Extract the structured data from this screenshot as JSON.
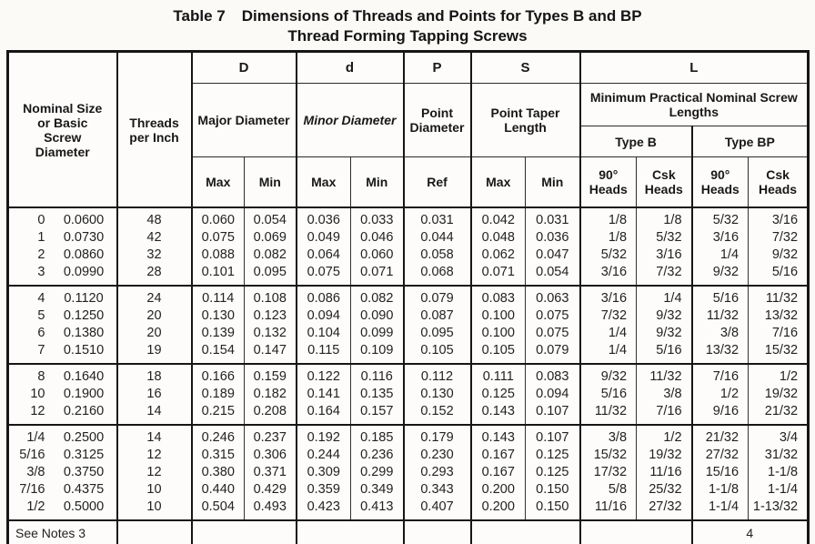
{
  "title": {
    "label": "Table 7",
    "line1": "Dimensions of Threads and Points for Types B and BP",
    "line2": "Thread Forming Tapping Screws"
  },
  "header": {
    "nominal_size": "Nominal Size or Basic Screw Diameter",
    "threads_per_inch": "Threads per Inch",
    "letter_major": "D",
    "letter_minor": "d",
    "letter_point": "P",
    "letter_taper": "S",
    "letter_length": "L",
    "major_diameter": "Major Diameter",
    "minor_diameter": "Minor Diameter",
    "point_diameter": "Point Diameter",
    "point_taper_length": "Point Taper Length",
    "min_practical": "Minimum Practical Nominal Screw Lengths",
    "type_b": "Type B",
    "type_bp": "Type BP",
    "max": "Max",
    "min": "Min",
    "ref": "Ref",
    "heads_90": "90° Heads",
    "heads_csk": "Csk Heads"
  },
  "groups": [
    {
      "rows": [
        {
          "size": "0",
          "basic": "0.0600",
          "tpi": "48",
          "major_max": "0.060",
          "major_min": "0.054",
          "minor_max": "0.036",
          "minor_min": "0.033",
          "point_ref": "0.031",
          "taper_max": "0.042",
          "taper_min": "0.031",
          "b_90": "1/8",
          "b_csk": "1/8",
          "bp_90": "5/32",
          "bp_csk": "3/16"
        },
        {
          "size": "1",
          "basic": "0.0730",
          "tpi": "42",
          "major_max": "0.075",
          "major_min": "0.069",
          "minor_max": "0.049",
          "minor_min": "0.046",
          "point_ref": "0.044",
          "taper_max": "0.048",
          "taper_min": "0.036",
          "b_90": "1/8",
          "b_csk": "5/32",
          "bp_90": "3/16",
          "bp_csk": "7/32"
        },
        {
          "size": "2",
          "basic": "0.0860",
          "tpi": "32",
          "major_max": "0.088",
          "major_min": "0.082",
          "minor_max": "0.064",
          "minor_min": "0.060",
          "point_ref": "0.058",
          "taper_max": "0.062",
          "taper_min": "0.047",
          "b_90": "5/32",
          "b_csk": "3/16",
          "bp_90": "1/4",
          "bp_csk": "9/32"
        },
        {
          "size": "3",
          "basic": "0.0990",
          "tpi": "28",
          "major_max": "0.101",
          "major_min": "0.095",
          "minor_max": "0.075",
          "minor_min": "0.071",
          "point_ref": "0.068",
          "taper_max": "0.071",
          "taper_min": "0.054",
          "b_90": "3/16",
          "b_csk": "7/32",
          "bp_90": "9/32",
          "bp_csk": "5/16"
        }
      ]
    },
    {
      "rows": [
        {
          "size": "4",
          "basic": "0.1120",
          "tpi": "24",
          "major_max": "0.114",
          "major_min": "0.108",
          "minor_max": "0.086",
          "minor_min": "0.082",
          "point_ref": "0.079",
          "taper_max": "0.083",
          "taper_min": "0.063",
          "b_90": "3/16",
          "b_csk": "1/4",
          "bp_90": "5/16",
          "bp_csk": "11/32"
        },
        {
          "size": "5",
          "basic": "0.1250",
          "tpi": "20",
          "major_max": "0.130",
          "major_min": "0.123",
          "minor_max": "0.094",
          "minor_min": "0.090",
          "point_ref": "0.087",
          "taper_max": "0.100",
          "taper_min": "0.075",
          "b_90": "7/32",
          "b_csk": "9/32",
          "bp_90": "11/32",
          "bp_csk": "13/32"
        },
        {
          "size": "6",
          "basic": "0.1380",
          "tpi": "20",
          "major_max": "0.139",
          "major_min": "0.132",
          "minor_max": "0.104",
          "minor_min": "0.099",
          "point_ref": "0.095",
          "taper_max": "0.100",
          "taper_min": "0.075",
          "b_90": "1/4",
          "b_csk": "9/32",
          "bp_90": "3/8",
          "bp_csk": "7/16"
        },
        {
          "size": "7",
          "basic": "0.1510",
          "tpi": "19",
          "major_max": "0.154",
          "major_min": "0.147",
          "minor_max": "0.115",
          "minor_min": "0.109",
          "point_ref": "0.105",
          "taper_max": "0.105",
          "taper_min": "0.079",
          "b_90": "1/4",
          "b_csk": "5/16",
          "bp_90": "13/32",
          "bp_csk": "15/32"
        }
      ]
    },
    {
      "rows": [
        {
          "size": "8",
          "basic": "0.1640",
          "tpi": "18",
          "major_max": "0.166",
          "major_min": "0.159",
          "minor_max": "0.122",
          "minor_min": "0.116",
          "point_ref": "0.112",
          "taper_max": "0.111",
          "taper_min": "0.083",
          "b_90": "9/32",
          "b_csk": "11/32",
          "bp_90": "7/16",
          "bp_csk": "1/2"
        },
        {
          "size": "10",
          "basic": "0.1900",
          "tpi": "16",
          "major_max": "0.189",
          "major_min": "0.182",
          "minor_max": "0.141",
          "minor_min": "0.135",
          "point_ref": "0.130",
          "taper_max": "0.125",
          "taper_min": "0.094",
          "b_90": "5/16",
          "b_csk": "3/8",
          "bp_90": "1/2",
          "bp_csk": "19/32"
        },
        {
          "size": "12",
          "basic": "0.2160",
          "tpi": "14",
          "major_max": "0.215",
          "major_min": "0.208",
          "minor_max": "0.164",
          "minor_min": "0.157",
          "point_ref": "0.152",
          "taper_max": "0.143",
          "taper_min": "0.107",
          "b_90": "11/32",
          "b_csk": "7/16",
          "bp_90": "9/16",
          "bp_csk": "21/32"
        }
      ]
    },
    {
      "rows": [
        {
          "size": "1/4",
          "basic": "0.2500",
          "tpi": "14",
          "major_max": "0.246",
          "major_min": "0.237",
          "minor_max": "0.192",
          "minor_min": "0.185",
          "point_ref": "0.179",
          "taper_max": "0.143",
          "taper_min": "0.107",
          "b_90": "3/8",
          "b_csk": "1/2",
          "bp_90": "21/32",
          "bp_csk": "3/4"
        },
        {
          "size": "5/16",
          "basic": "0.3125",
          "tpi": "12",
          "major_max": "0.315",
          "major_min": "0.306",
          "minor_max": "0.244",
          "minor_min": "0.236",
          "point_ref": "0.230",
          "taper_max": "0.167",
          "taper_min": "0.125",
          "b_90": "15/32",
          "b_csk": "19/32",
          "bp_90": "27/32",
          "bp_csk": "31/32"
        },
        {
          "size": "3/8",
          "basic": "0.3750",
          "tpi": "12",
          "major_max": "0.380",
          "major_min": "0.371",
          "minor_max": "0.309",
          "minor_min": "0.299",
          "point_ref": "0.293",
          "taper_max": "0.167",
          "taper_min": "0.125",
          "b_90": "17/32",
          "b_csk": "11/16",
          "bp_90": "15/16",
          "bp_csk": "1-1/8"
        },
        {
          "size": "7/16",
          "basic": "0.4375",
          "tpi": "10",
          "major_max": "0.440",
          "major_min": "0.429",
          "minor_max": "0.359",
          "minor_min": "0.349",
          "point_ref": "0.343",
          "taper_max": "0.200",
          "taper_min": "0.150",
          "b_90": "5/8",
          "b_csk": "25/32",
          "bp_90": "1-1/8",
          "bp_csk": "1-1/4"
        },
        {
          "size": "1/2",
          "basic": "0.5000",
          "tpi": "10",
          "major_max": "0.504",
          "major_min": "0.493",
          "minor_max": "0.423",
          "minor_min": "0.413",
          "point_ref": "0.407",
          "taper_max": "0.200",
          "taper_min": "0.150",
          "b_90": "11/16",
          "b_csk": "27/32",
          "bp_90": "1-1/4",
          "bp_csk": "1-13/32"
        }
      ]
    }
  ],
  "footer": {
    "notes_left": "See Notes  3",
    "notes_right": "4"
  }
}
